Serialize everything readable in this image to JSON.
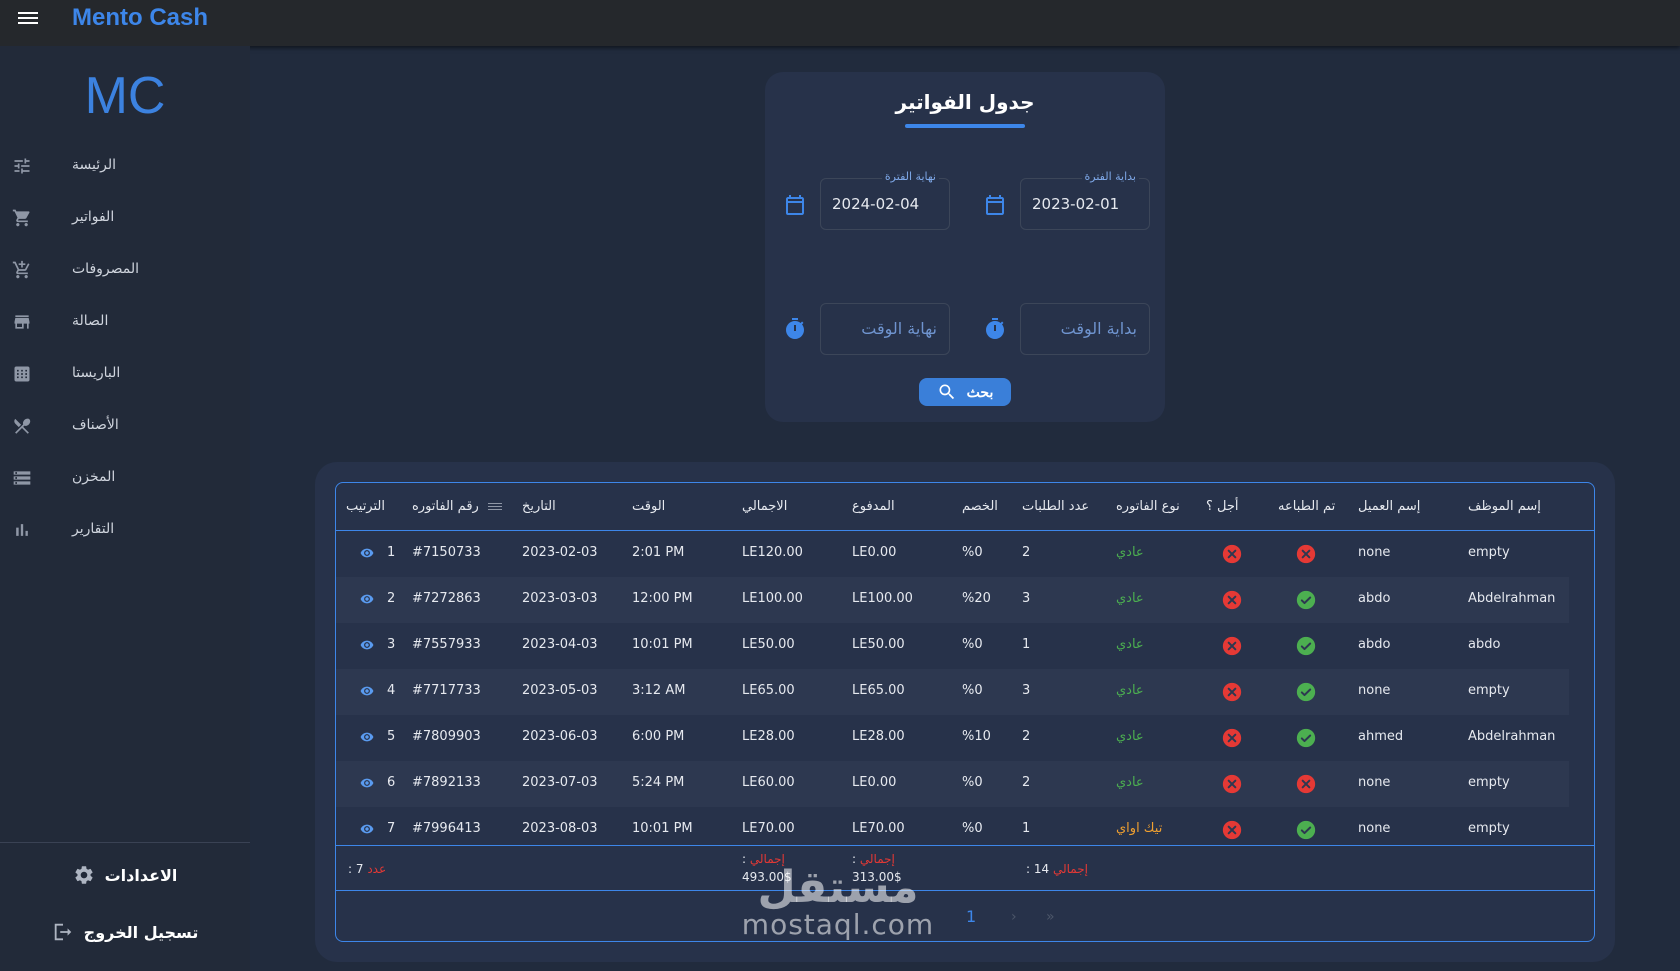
{
  "app": {
    "brand": "Mento Cash",
    "logo": "MC"
  },
  "sidebar": {
    "items": [
      {
        "label": "الرئيسة",
        "icon": "tune-icon"
      },
      {
        "label": "الفواتير",
        "icon": "cart-icon"
      },
      {
        "label": "المصروفات",
        "icon": "add-cart-icon"
      },
      {
        "label": "الصالة",
        "icon": "store-icon"
      },
      {
        "label": "الباريستا",
        "icon": "grid-icon"
      },
      {
        "label": "الأصناف",
        "icon": "utensils-icon"
      },
      {
        "label": "المخزن",
        "icon": "storage-icon"
      },
      {
        "label": "التقارير",
        "icon": "bar-chart-icon"
      }
    ],
    "settings_label": "الاعدادات",
    "logout_label": "تسجيل الخروج"
  },
  "filter": {
    "title": "جدول الفواتير",
    "start_date_label": "بداية الفترة",
    "start_date_value": "2023-02-01",
    "end_date_label": "نهاية الفترة",
    "end_date_value": "2024-02-04",
    "start_time_placeholder": "بداية الوقت",
    "end_time_placeholder": "نهاية الوقت",
    "search_label": "بحث"
  },
  "table": {
    "headers": {
      "order": "الترتيب",
      "invoice_no": "رقم الفاتوره",
      "date": "التاريخ",
      "time": "الوقت",
      "total": "الاجمالي",
      "paid": "المدفوع",
      "discount": "الخصم",
      "orders_count": "عدد الطلبات",
      "invoice_type": "نوع الفاتوره",
      "deferred": "أجل ؟",
      "printed": "تم الطباعه",
      "customer": "إسم العميل",
      "employee": "إسم الموظف"
    },
    "rows": [
      {
        "order": "1",
        "invoice_no": "#7150733",
        "date": "2023-02-03",
        "time": "2:01 PM",
        "total": "LE120.00",
        "paid": "LE0.00",
        "discount": "%0",
        "orders_count": "2",
        "invoice_type": "عادي",
        "type_color": "green",
        "deferred": false,
        "printed": false,
        "customer": "none",
        "employee": "empty"
      },
      {
        "order": "2",
        "invoice_no": "#7272863",
        "date": "2023-03-03",
        "time": "12:00 PM",
        "total": "LE100.00",
        "paid": "LE100.00",
        "discount": "%20",
        "orders_count": "3",
        "invoice_type": "عادي",
        "type_color": "green",
        "deferred": false,
        "printed": true,
        "customer": "abdo",
        "employee": "Abdelrahman"
      },
      {
        "order": "3",
        "invoice_no": "#7557933",
        "date": "2023-04-03",
        "time": "10:01 PM",
        "total": "LE50.00",
        "paid": "LE50.00",
        "discount": "%0",
        "orders_count": "1",
        "invoice_type": "عادي",
        "type_color": "green",
        "deferred": false,
        "printed": true,
        "customer": "abdo",
        "employee": "abdo"
      },
      {
        "order": "4",
        "invoice_no": "#7717733",
        "date": "2023-05-03",
        "time": "3:12 AM",
        "total": "LE65.00",
        "paid": "LE65.00",
        "discount": "%0",
        "orders_count": "3",
        "invoice_type": "عادي",
        "type_color": "green",
        "deferred": false,
        "printed": true,
        "customer": "none",
        "employee": "empty"
      },
      {
        "order": "5",
        "invoice_no": "#7809903",
        "date": "2023-06-03",
        "time": "6:00 PM",
        "total": "LE28.00",
        "paid": "LE28.00",
        "discount": "%10",
        "orders_count": "2",
        "invoice_type": "عادي",
        "type_color": "green",
        "deferred": false,
        "printed": true,
        "customer": "ahmed",
        "employee": "Abdelrahman"
      },
      {
        "order": "6",
        "invoice_no": "#7892133",
        "date": "2023-07-03",
        "time": "5:24 PM",
        "total": "LE60.00",
        "paid": "LE0.00",
        "discount": "%0",
        "orders_count": "2",
        "invoice_type": "عادي",
        "type_color": "green",
        "deferred": false,
        "printed": false,
        "customer": "none",
        "employee": "empty"
      },
      {
        "order": "7",
        "invoice_no": "#7996413",
        "date": "2023-08-03",
        "time": "10:01 PM",
        "total": "LE70.00",
        "paid": "LE70.00",
        "discount": "%0",
        "orders_count": "1",
        "invoice_type": "تيك اواي",
        "type_color": "orange",
        "deferred": false,
        "printed": true,
        "customer": "none",
        "employee": "empty"
      }
    ],
    "footer": {
      "count_label": "عدد",
      "count_value": ": 7",
      "total_label": "إجمالي",
      "total_value": "493.00$",
      "paid_label": "إجمالي",
      "paid_value": "313.00$",
      "orders_label": "إجمالي",
      "orders_value": ": 14",
      "colon": ":"
    },
    "pagination": {
      "current_page": "1",
      "next": "›",
      "last": "»"
    }
  },
  "watermark": {
    "line1": "مستقل",
    "line2": "mostaql.com"
  },
  "colors": {
    "accent": "#3d86e9",
    "error": "#e53935",
    "success": "#4caf50",
    "warning": "#f0a030"
  }
}
